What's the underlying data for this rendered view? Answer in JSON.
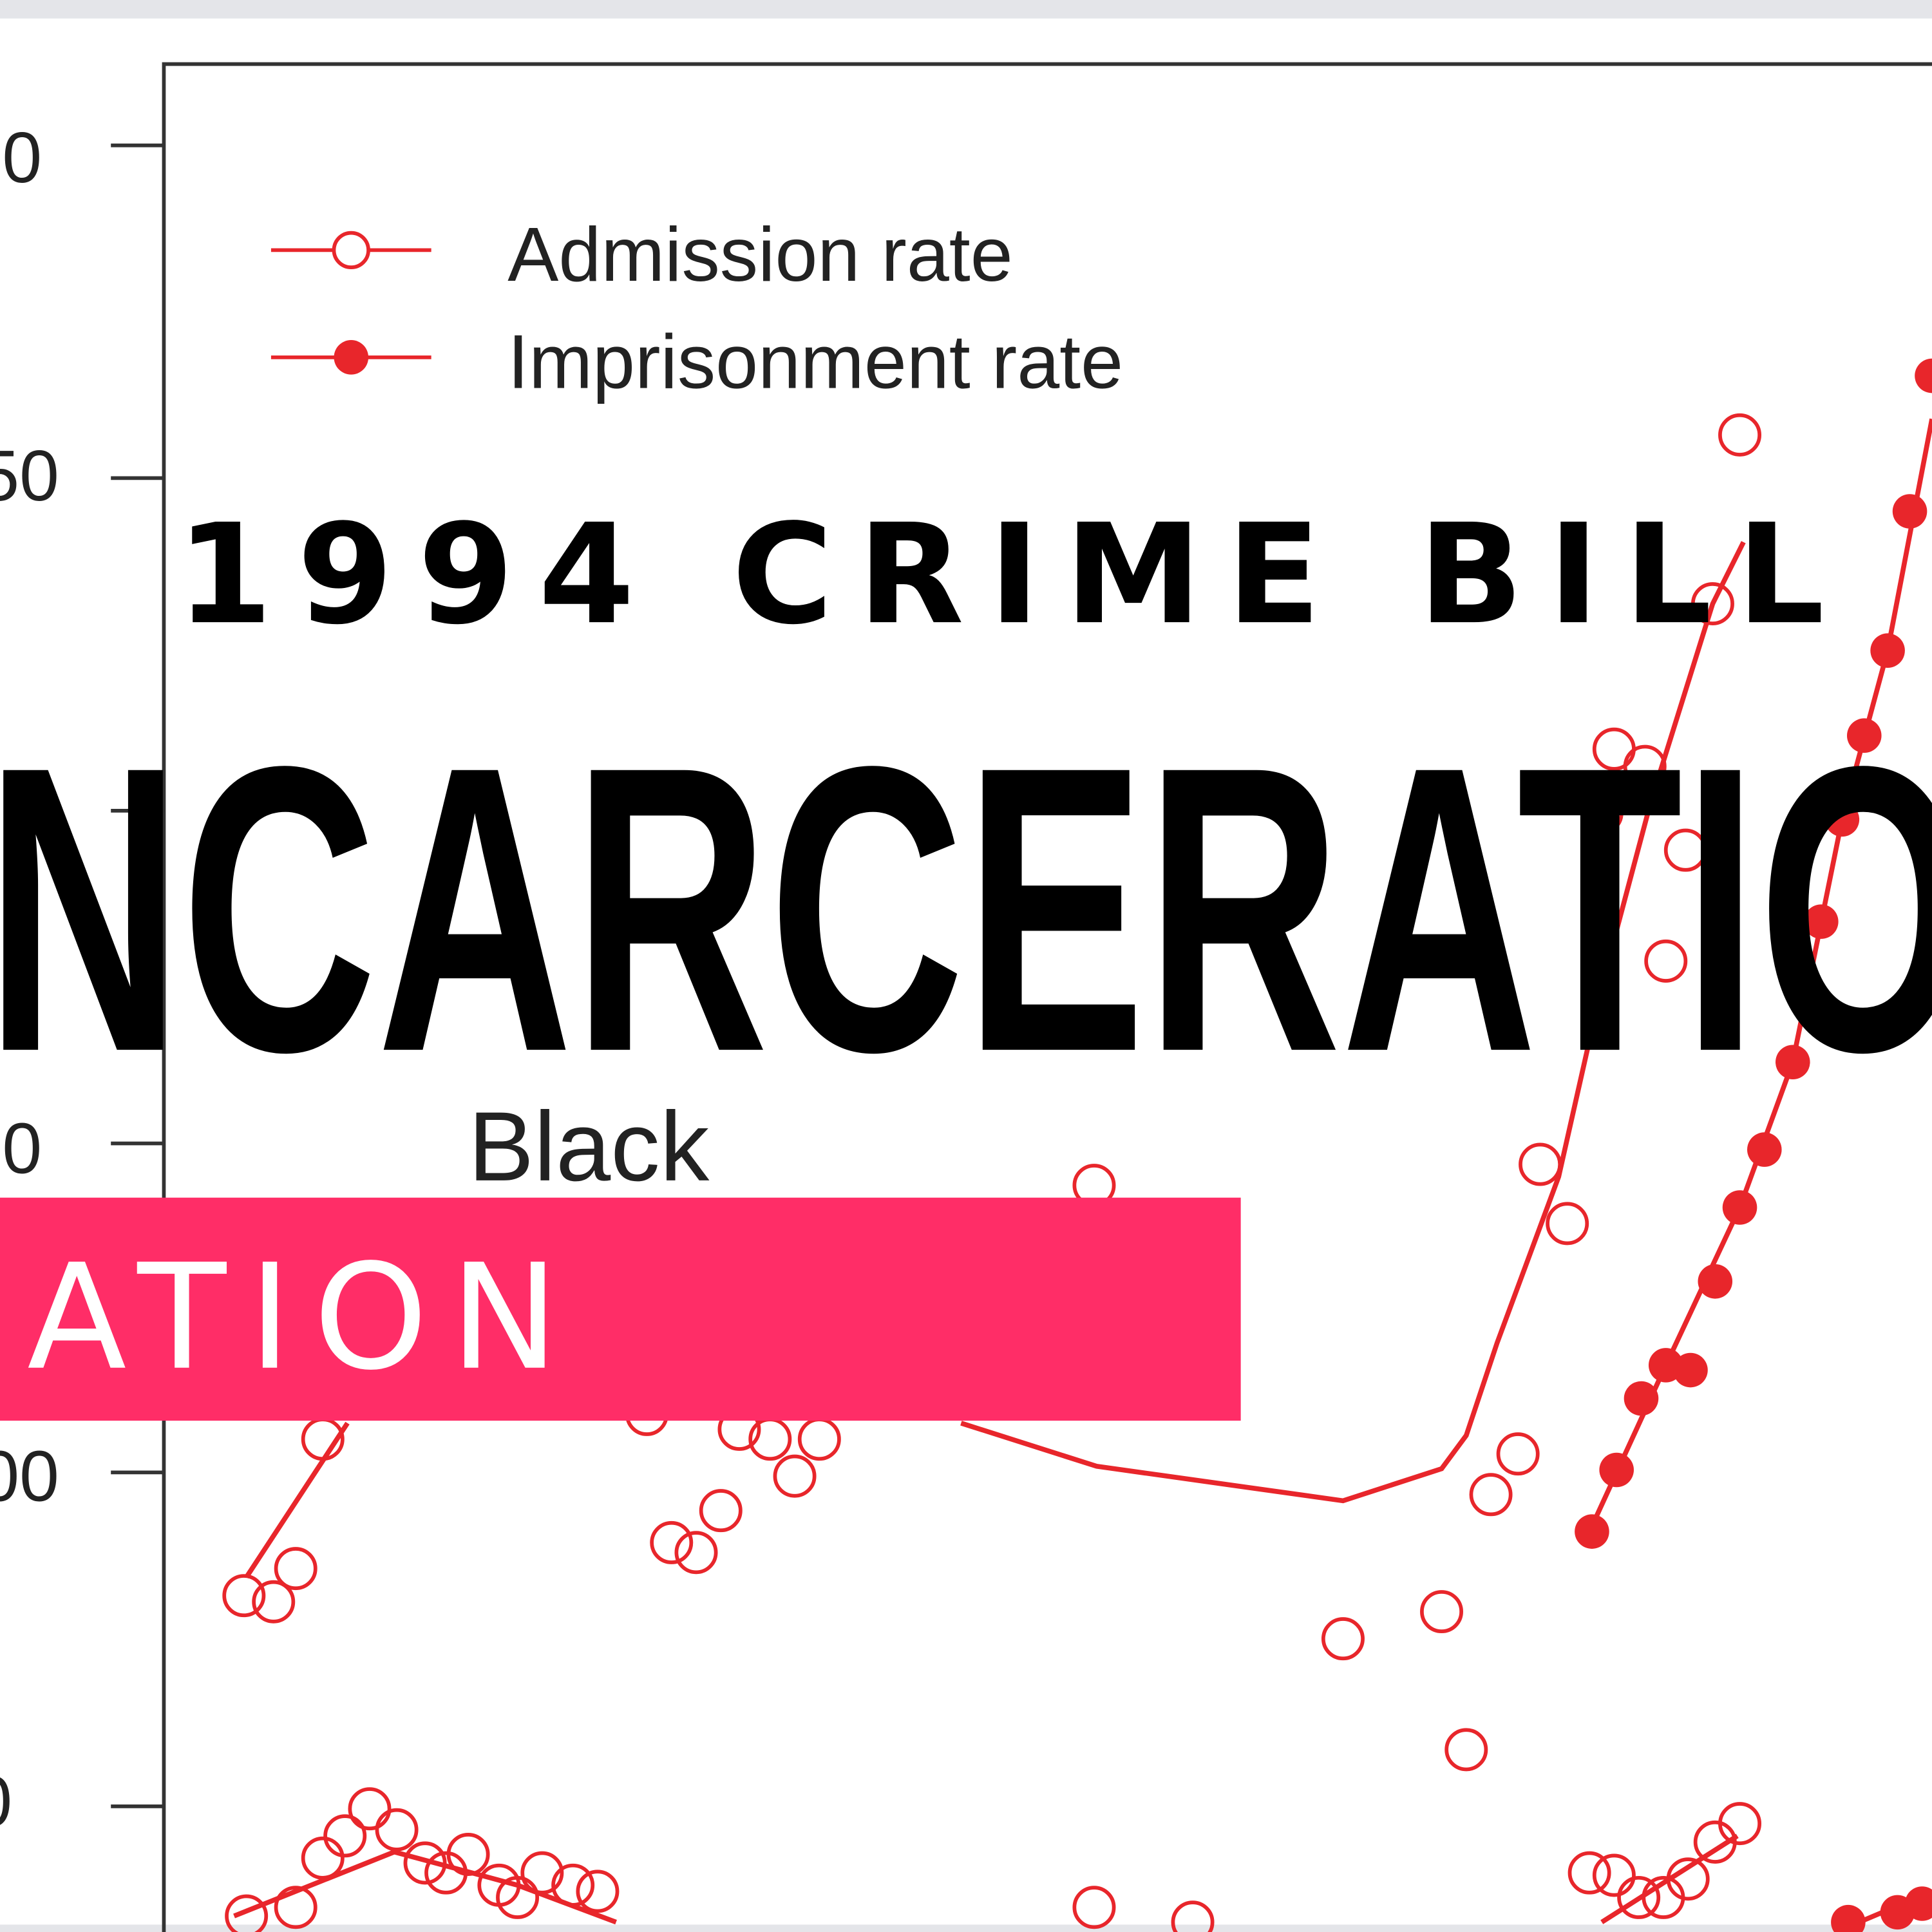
{
  "header": {
    "top_text": "1994 CRIME BILL",
    "headline": "NCARCERATIO"
  },
  "banner": {
    "text": "ATION"
  },
  "chart": {
    "legend": [
      "Admission rate",
      "Imprisonment rate"
    ],
    "annotation": "Black",
    "tick_labels": [
      "0",
      "50",
      "0",
      "00",
      "0"
    ]
  }
}
